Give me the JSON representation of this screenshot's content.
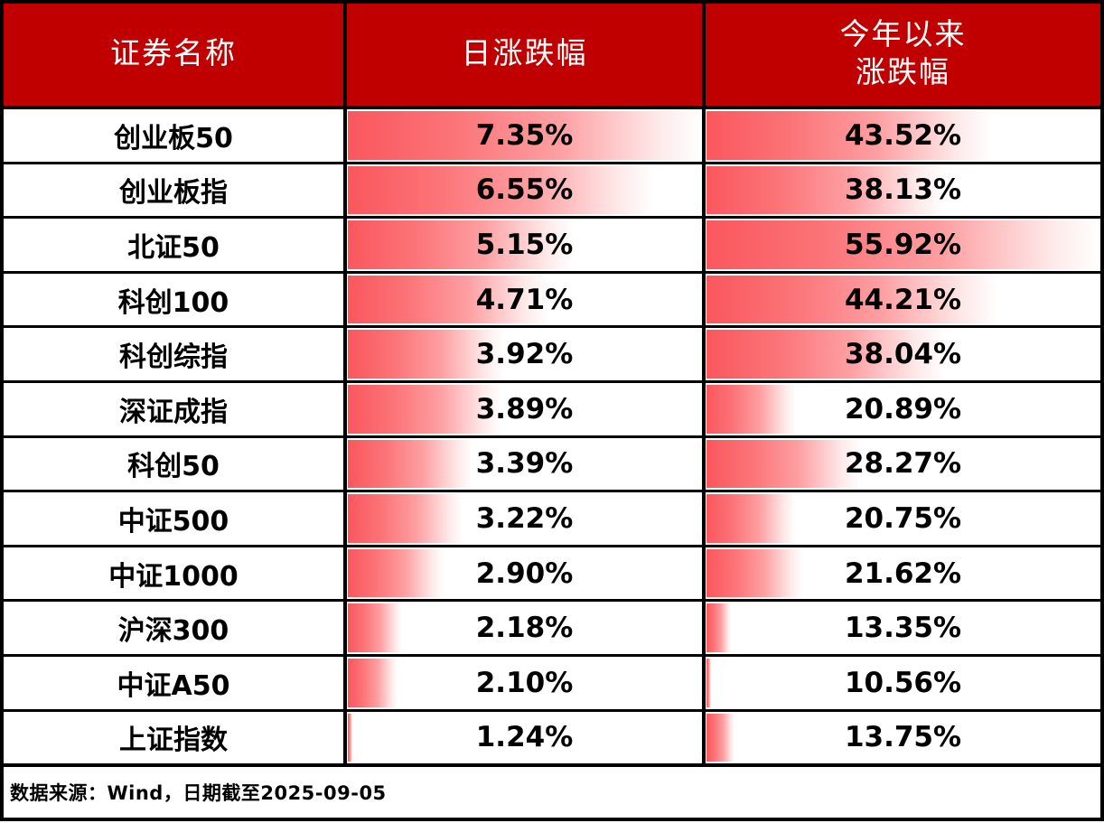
{
  "header": {
    "name_label": "证券名称",
    "daily_label": "日涨跌幅",
    "ytd_label_line1": "今年以来",
    "ytd_label_line2": "涨跌幅"
  },
  "rows": [
    {
      "name": "创业板50",
      "daily": "7.35%",
      "ytd": "43.52%"
    },
    {
      "name": "创业板指",
      "daily": "6.55%",
      "ytd": "38.13%"
    },
    {
      "name": "北证50",
      "daily": "5.15%",
      "ytd": "55.92%"
    },
    {
      "name": "科创100",
      "daily": "4.71%",
      "ytd": "44.21%"
    },
    {
      "name": "科创综指",
      "daily": "3.92%",
      "ytd": "38.04%"
    },
    {
      "name": "深证成指",
      "daily": "3.89%",
      "ytd": "20.89%"
    },
    {
      "name": "科创50",
      "daily": "3.39%",
      "ytd": "28.27%"
    },
    {
      "name": "中证500",
      "daily": "3.22%",
      "ytd": "20.75%"
    },
    {
      "name": "中证1000",
      "daily": "2.90%",
      "ytd": "21.62%"
    },
    {
      "name": "沪深300",
      "daily": "2.18%",
      "ytd": "13.35%"
    },
    {
      "name": "中证A50",
      "daily": "2.10%",
      "ytd": "10.56%"
    },
    {
      "name": "上证指数",
      "daily": "1.24%",
      "ytd": "13.75%"
    }
  ],
  "footer": {
    "source_note": "数据来源：Wind，日期截至2025-09-05"
  },
  "colors": {
    "header_bg": "#C00000",
    "header_text": "#FFFFFF",
    "bar_gradient_start": "#FA575D",
    "bar_gradient_end": "#FFFFFF",
    "border": "#000000",
    "value_text": "#000000"
  },
  "chart_data": {
    "type": "table",
    "title": "",
    "columns": [
      "证券名称",
      "日涨跌幅",
      "今年以来涨跌幅"
    ],
    "categories": [
      "创业板50",
      "创业板指",
      "北证50",
      "科创100",
      "科创综指",
      "深证成指",
      "科创50",
      "中证500",
      "中证1000",
      "沪深300",
      "中证A50",
      "上证指数"
    ],
    "series": [
      {
        "name": "日涨跌幅",
        "unit": "%",
        "values": [
          7.35,
          6.55,
          5.15,
          4.71,
          3.92,
          3.89,
          3.39,
          3.22,
          2.9,
          2.18,
          2.1,
          1.24
        ]
      },
      {
        "name": "今年以来涨跌幅",
        "unit": "%",
        "values": [
          43.52,
          38.13,
          55.92,
          44.21,
          38.04,
          20.89,
          28.27,
          20.75,
          21.62,
          13.35,
          10.56,
          13.75
        ]
      }
    ],
    "note": "数据来源：Wind，日期截至2025-09-05",
    "layout": {
      "databars": true,
      "databar_scaling": "linear from column minimum (zero-length sliver) to column maximum (full cell width)",
      "sort": "descending by 日涨跌幅",
      "grid": true
    }
  }
}
